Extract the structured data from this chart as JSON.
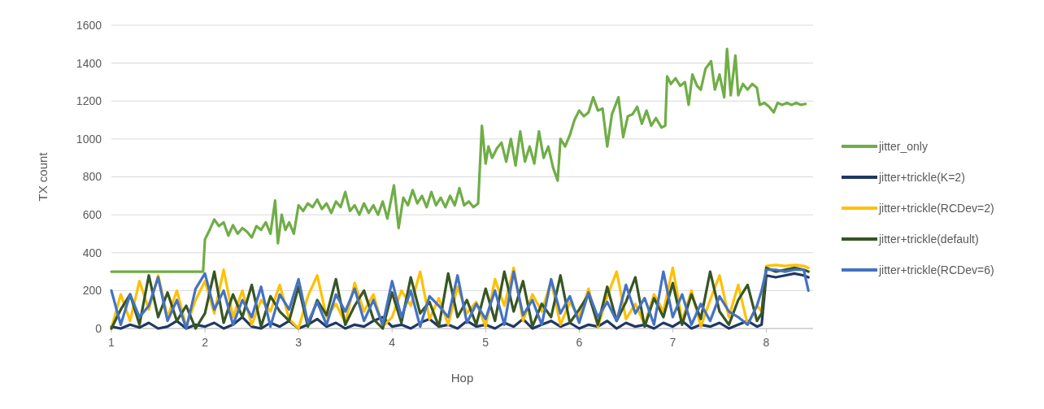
{
  "chart_data": {
    "type": "line",
    "xlabel": "Hop",
    "ylabel": "TX count",
    "xlim": [
      1,
      8.5
    ],
    "xticks": [
      1,
      2,
      3,
      4,
      5,
      6,
      7,
      8
    ],
    "ylim": [
      0,
      1600
    ],
    "yticks": [
      0,
      200,
      400,
      600,
      800,
      1000,
      1200,
      1400,
      1600
    ],
    "grid": "y",
    "legend": "right",
    "marker": "none",
    "line_style": "solid",
    "series": [
      {
        "name": "jitter_only",
        "color": "#70ad47",
        "x": [
          1,
          1.98,
          2.0,
          2.05,
          2.1,
          2.15,
          2.2,
          2.25,
          2.3,
          2.35,
          2.4,
          2.45,
          2.5,
          2.55,
          2.6,
          2.65,
          2.7,
          2.75,
          2.78,
          2.82,
          2.86,
          2.9,
          2.95,
          3.0,
          3.05,
          3.1,
          3.15,
          3.2,
          3.25,
          3.3,
          3.35,
          3.4,
          3.45,
          3.5,
          3.55,
          3.6,
          3.65,
          3.7,
          3.75,
          3.8,
          3.85,
          3.9,
          3.95,
          4.02,
          4.07,
          4.12,
          4.17,
          4.22,
          4.27,
          4.32,
          4.37,
          4.42,
          4.47,
          4.52,
          4.57,
          4.62,
          4.67,
          4.72,
          4.77,
          4.82,
          4.87,
          4.92,
          4.96,
          5.0,
          5.03,
          5.07,
          5.12,
          5.17,
          5.22,
          5.27,
          5.32,
          5.37,
          5.42,
          5.47,
          5.52,
          5.57,
          5.62,
          5.67,
          5.72,
          5.77,
          5.8,
          5.85,
          5.9,
          5.95,
          6.0,
          6.05,
          6.1,
          6.15,
          6.2,
          6.25,
          6.3,
          6.35,
          6.42,
          6.47,
          6.52,
          6.57,
          6.62,
          6.67,
          6.72,
          6.77,
          6.82,
          6.88,
          6.92,
          6.94,
          6.98,
          7.03,
          7.08,
          7.13,
          7.17,
          7.21,
          7.26,
          7.3,
          7.35,
          7.41,
          7.45,
          7.5,
          7.55,
          7.58,
          7.62,
          7.67,
          7.7,
          7.75,
          7.8,
          7.85,
          7.9,
          7.93,
          7.98,
          8.03,
          8.08,
          8.12,
          8.17,
          8.22,
          8.27,
          8.32,
          8.37,
          8.42
        ],
        "values": [
          300,
          300,
          470,
          520,
          575,
          540,
          560,
          490,
          545,
          500,
          530,
          510,
          480,
          540,
          520,
          560,
          500,
          675,
          450,
          600,
          520,
          560,
          500,
          650,
          620,
          660,
          640,
          680,
          630,
          660,
          610,
          670,
          640,
          720,
          620,
          650,
          600,
          660,
          610,
          650,
          600,
          670,
          580,
          755,
          530,
          690,
          650,
          730,
          660,
          700,
          640,
          720,
          650,
          690,
          640,
          700,
          650,
          740,
          650,
          670,
          640,
          660,
          1070,
          870,
          960,
          900,
          950,
          980,
          880,
          1000,
          860,
          1040,
          880,
          960,
          870,
          1040,
          900,
          960,
          850,
          780,
          1000,
          960,
          1020,
          1100,
          1150,
          1120,
          1140,
          1220,
          1150,
          1160,
          960,
          1130,
          1220,
          1010,
          1120,
          1130,
          1170,
          1080,
          1150,
          1070,
          1110,
          1060,
          1070,
          1330,
          1290,
          1320,
          1280,
          1300,
          1180,
          1340,
          1280,
          1260,
          1370,
          1410,
          1260,
          1340,
          1220,
          1475,
          1230,
          1440,
          1230,
          1290,
          1260,
          1290,
          1270,
          1180,
          1190,
          1170,
          1140,
          1190,
          1180,
          1190,
          1180,
          1190,
          1180,
          1185
        ]
      },
      {
        "name": "jitter+trickle(K=2)",
        "color": "#203864",
        "x": [
          1.0,
          1.1,
          1.2,
          1.3,
          1.4,
          1.5,
          1.6,
          1.7,
          1.8,
          1.9,
          2.0,
          2.1,
          2.2,
          2.3,
          2.4,
          2.5,
          2.6,
          2.7,
          2.8,
          2.9,
          3.0,
          3.1,
          3.2,
          3.3,
          3.4,
          3.5,
          3.6,
          3.7,
          3.8,
          3.9,
          4.0,
          4.1,
          4.2,
          4.3,
          4.4,
          4.5,
          4.6,
          4.7,
          4.8,
          4.9,
          5.0,
          5.1,
          5.2,
          5.3,
          5.4,
          5.5,
          5.6,
          5.7,
          5.8,
          5.9,
          6.0,
          6.1,
          6.2,
          6.3,
          6.4,
          6.5,
          6.6,
          6.7,
          6.8,
          6.9,
          7.0,
          7.1,
          7.2,
          7.3,
          7.4,
          7.5,
          7.6,
          7.7,
          7.8,
          7.9,
          7.95,
          8.0,
          8.1,
          8.2,
          8.3,
          8.4,
          8.45
        ],
        "values": [
          10,
          0,
          20,
          5,
          30,
          0,
          10,
          40,
          0,
          20,
          10,
          30,
          0,
          20,
          60,
          10,
          0,
          30,
          10,
          40,
          0,
          20,
          50,
          10,
          30,
          0,
          20,
          10,
          40,
          60,
          10,
          20,
          0,
          30,
          50,
          10,
          20,
          0,
          40,
          10,
          20,
          0,
          30,
          10,
          50,
          0,
          20,
          40,
          10,
          30,
          0,
          20,
          10,
          40,
          0,
          30,
          10,
          20,
          0,
          30,
          10,
          40,
          0,
          20,
          10,
          30,
          0,
          20,
          40,
          10,
          20,
          280,
          270,
          280,
          290,
          280,
          270
        ]
      },
      {
        "name": "jitter+trickle(RCDev=2)",
        "color": "#ffc000",
        "x": [
          1.0,
          1.1,
          1.2,
          1.3,
          1.4,
          1.5,
          1.6,
          1.7,
          1.8,
          1.9,
          2.0,
          2.1,
          2.2,
          2.3,
          2.4,
          2.5,
          2.6,
          2.7,
          2.8,
          2.9,
          3.0,
          3.1,
          3.2,
          3.3,
          3.4,
          3.5,
          3.6,
          3.7,
          3.8,
          3.9,
          4.0,
          4.1,
          4.2,
          4.3,
          4.4,
          4.5,
          4.6,
          4.7,
          4.8,
          4.9,
          5.0,
          5.1,
          5.2,
          5.3,
          5.4,
          5.5,
          5.6,
          5.7,
          5.8,
          5.9,
          6.0,
          6.1,
          6.2,
          6.3,
          6.4,
          6.5,
          6.6,
          6.7,
          6.8,
          6.9,
          7.0,
          7.1,
          7.2,
          7.3,
          7.4,
          7.5,
          7.6,
          7.7,
          7.8,
          7.9,
          7.95,
          8.0,
          8.1,
          8.2,
          8.3,
          8.4,
          8.45
        ],
        "values": [
          0,
          180,
          40,
          250,
          100,
          280,
          60,
          200,
          10,
          150,
          250,
          80,
          310,
          60,
          200,
          20,
          150,
          90,
          230,
          50,
          0,
          170,
          280,
          60,
          130,
          30,
          240,
          90,
          180,
          10,
          60,
          200,
          120,
          300,
          50,
          160,
          20,
          220,
          80,
          140,
          10,
          260,
          120,
          320,
          40,
          180,
          90,
          250,
          20,
          140,
          60,
          210,
          10,
          170,
          300,
          50,
          130,
          20,
          180,
          90,
          320,
          40,
          200,
          10,
          150,
          280,
          60,
          230,
          20,
          120,
          90,
          330,
          335,
          330,
          335,
          330,
          320
        ]
      },
      {
        "name": "jitter+trickle(default)",
        "color": "#375623",
        "x": [
          1.0,
          1.1,
          1.2,
          1.3,
          1.4,
          1.5,
          1.6,
          1.7,
          1.8,
          1.9,
          2.0,
          2.1,
          2.2,
          2.3,
          2.4,
          2.5,
          2.6,
          2.7,
          2.8,
          2.9,
          3.0,
          3.1,
          3.2,
          3.3,
          3.4,
          3.5,
          3.6,
          3.7,
          3.8,
          3.9,
          4.0,
          4.1,
          4.2,
          4.3,
          4.4,
          4.5,
          4.6,
          4.7,
          4.8,
          4.9,
          5.0,
          5.1,
          5.2,
          5.3,
          5.4,
          5.5,
          5.6,
          5.7,
          5.8,
          5.9,
          6.0,
          6.1,
          6.2,
          6.3,
          6.4,
          6.5,
          6.6,
          6.7,
          6.8,
          6.9,
          7.0,
          7.1,
          7.2,
          7.3,
          7.4,
          7.5,
          7.6,
          7.7,
          7.8,
          7.9,
          7.95,
          8.0,
          8.1,
          8.2,
          8.3,
          8.4,
          8.45
        ],
        "values": [
          0,
          100,
          180,
          20,
          280,
          60,
          190,
          40,
          120,
          0,
          80,
          300,
          30,
          180,
          60,
          230,
          10,
          170,
          90,
          40,
          220,
          10,
          150,
          70,
          260,
          20,
          120,
          200,
          50,
          0,
          190,
          30,
          270,
          80,
          140,
          10,
          290,
          60,
          150,
          20,
          210,
          40,
          300,
          90,
          250,
          10,
          130,
          60,
          280,
          30,
          100,
          180,
          20,
          220,
          40,
          140,
          270,
          10,
          160,
          60,
          240,
          20,
          180,
          50,
          300,
          90,
          20,
          150,
          230,
          40,
          80,
          320,
          300,
          310,
          320,
          310,
          300
        ]
      },
      {
        "name": "jitter+trickle(RCDev=6)",
        "color": "#4472c4",
        "x": [
          1.0,
          1.1,
          1.2,
          1.3,
          1.4,
          1.5,
          1.6,
          1.7,
          1.8,
          1.9,
          2.0,
          2.1,
          2.2,
          2.3,
          2.4,
          2.5,
          2.6,
          2.7,
          2.8,
          2.9,
          3.0,
          3.1,
          3.2,
          3.3,
          3.4,
          3.5,
          3.6,
          3.7,
          3.8,
          3.9,
          4.0,
          4.1,
          4.2,
          4.3,
          4.4,
          4.5,
          4.6,
          4.7,
          4.8,
          4.9,
          5.0,
          5.1,
          5.2,
          5.3,
          5.4,
          5.5,
          5.6,
          5.7,
          5.8,
          5.9,
          6.0,
          6.1,
          6.2,
          6.3,
          6.4,
          6.5,
          6.6,
          6.7,
          6.8,
          6.9,
          7.0,
          7.1,
          7.2,
          7.3,
          7.4,
          7.5,
          7.6,
          7.7,
          7.8,
          7.9,
          7.95,
          8.0,
          8.1,
          8.2,
          8.3,
          8.4,
          8.45
        ],
        "values": [
          200,
          20,
          180,
          60,
          120,
          270,
          40,
          150,
          0,
          210,
          290,
          100,
          200,
          20,
          150,
          60,
          220,
          10,
          180,
          100,
          260,
          30,
          140,
          20,
          180,
          90,
          210,
          40,
          150,
          20,
          250,
          60,
          200,
          10,
          170,
          120,
          60,
          280,
          30,
          130,
          50,
          200,
          20,
          300,
          70,
          150,
          20,
          260,
          80,
          170,
          30,
          190,
          60,
          140,
          40,
          230,
          80,
          160,
          20,
          300,
          60,
          180,
          20,
          130,
          40,
          170,
          90,
          60,
          20,
          120,
          200,
          310,
          310,
          300,
          310,
          310,
          200
        ]
      }
    ]
  }
}
